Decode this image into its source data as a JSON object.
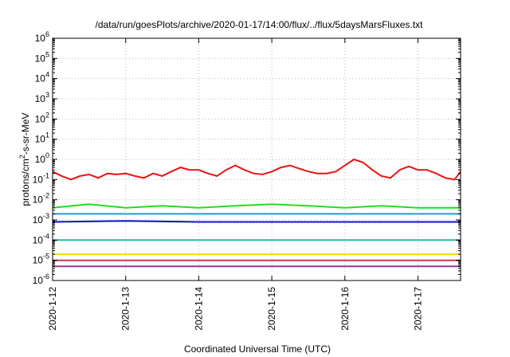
{
  "chart_data": {
    "type": "line",
    "title": "/data/run/goesPlots/archive/2020-01-17/14:00/flux/../flux/5daysMarsFluxes.txt",
    "xlabel": "Coordinated Universal Time (UTC)",
    "ylabel_base": "protons/cm",
    "ylabel_sup": "2",
    "ylabel_rest": "-s-sr-MeV",
    "x_scale": "time",
    "x_range": [
      "2020-01-12T00:00",
      "2020-01-17T14:00"
    ],
    "x_ticks": [
      "2020-1-12",
      "2020-1-13",
      "2020-1-14",
      "2020-1-15",
      "2020-1-16",
      "2020-1-17"
    ],
    "y_scale": "log",
    "y_range": [
      1e-06,
      1000000.0
    ],
    "y_ticks": [
      {
        "base": "10",
        "exp": "-6"
      },
      {
        "base": "10",
        "exp": "-5"
      },
      {
        "base": "10",
        "exp": "-4"
      },
      {
        "base": "10",
        "exp": "-3"
      },
      {
        "base": "10",
        "exp": "-2"
      },
      {
        "base": "10",
        "exp": "-1"
      },
      {
        "base": "10",
        "exp": "0"
      },
      {
        "base": "10",
        "exp": "1"
      },
      {
        "base": "10",
        "exp": "2"
      },
      {
        "base": "10",
        "exp": "3"
      },
      {
        "base": "10",
        "exp": "4"
      },
      {
        "base": "10",
        "exp": "5"
      },
      {
        "base": "10",
        "exp": "6"
      }
    ],
    "grid": true,
    "legend": "none",
    "series": [
      {
        "color": "#ee1111",
        "x": [
          "2020-01-12T00:00",
          "2020-01-12T03:00",
          "2020-01-12T06:00",
          "2020-01-12T09:00",
          "2020-01-12T12:00",
          "2020-01-12T15:00",
          "2020-01-12T18:00",
          "2020-01-12T21:00",
          "2020-01-13T00:00",
          "2020-01-13T03:00",
          "2020-01-13T06:00",
          "2020-01-13T09:00",
          "2020-01-13T12:00",
          "2020-01-13T15:00",
          "2020-01-13T18:00",
          "2020-01-13T21:00",
          "2020-01-14T00:00",
          "2020-01-14T03:00",
          "2020-01-14T06:00",
          "2020-01-14T09:00",
          "2020-01-14T12:00",
          "2020-01-14T15:00",
          "2020-01-14T18:00",
          "2020-01-14T21:00",
          "2020-01-15T00:00",
          "2020-01-15T03:00",
          "2020-01-15T06:00",
          "2020-01-15T09:00",
          "2020-01-15T12:00",
          "2020-01-15T15:00",
          "2020-01-15T18:00",
          "2020-01-15T21:00",
          "2020-01-16T00:00",
          "2020-01-16T03:00",
          "2020-01-16T06:00",
          "2020-01-16T09:00",
          "2020-01-16T12:00",
          "2020-01-16T15:00",
          "2020-01-16T18:00",
          "2020-01-16T21:00",
          "2020-01-17T00:00",
          "2020-01-17T03:00",
          "2020-01-17T06:00",
          "2020-01-17T09:00",
          "2020-01-17T12:00",
          "2020-01-17T14:00"
        ],
        "y": [
          0.25,
          0.15,
          0.1,
          0.15,
          0.18,
          0.12,
          0.2,
          0.18,
          0.2,
          0.15,
          0.12,
          0.2,
          0.15,
          0.25,
          0.4,
          0.3,
          0.3,
          0.2,
          0.15,
          0.3,
          0.5,
          0.3,
          0.2,
          0.18,
          0.25,
          0.4,
          0.5,
          0.35,
          0.25,
          0.2,
          0.2,
          0.25,
          0.5,
          1.0,
          0.7,
          0.3,
          0.15,
          0.12,
          0.3,
          0.45,
          0.3,
          0.3,
          0.2,
          0.12,
          0.1,
          0.25
        ]
      },
      {
        "color": "#22dd22",
        "x": [
          "2020-01-12T00:00",
          "2020-01-12T12:00",
          "2020-01-13T00:00",
          "2020-01-13T12:00",
          "2020-01-14T00:00",
          "2020-01-14T12:00",
          "2020-01-15T00:00",
          "2020-01-15T12:00",
          "2020-01-16T00:00",
          "2020-01-16T12:00",
          "2020-01-17T00:00",
          "2020-01-17T14:00"
        ],
        "y": [
          0.004,
          0.006,
          0.004,
          0.005,
          0.004,
          0.005,
          0.006,
          0.005,
          0.004,
          0.005,
          0.004,
          0.004
        ]
      },
      {
        "color": "#2299dd",
        "x": [
          "2020-01-12T00:00",
          "2020-01-13T00:00",
          "2020-01-14T00:00",
          "2020-01-15T00:00",
          "2020-01-16T00:00",
          "2020-01-17T00:00",
          "2020-01-17T14:00"
        ],
        "y": [
          0.002,
          0.002,
          0.002,
          0.002,
          0.002,
          0.002,
          0.002
        ]
      },
      {
        "color": "#1111cc",
        "x": [
          "2020-01-12T00:00",
          "2020-01-13T00:00",
          "2020-01-14T00:00",
          "2020-01-15T00:00",
          "2020-01-16T00:00",
          "2020-01-17T00:00",
          "2020-01-17T14:00"
        ],
        "y": [
          0.0008,
          0.0009,
          0.0008,
          0.0008,
          0.0008,
          0.0008,
          0.0008
        ]
      },
      {
        "color": "#22bbaa",
        "x": [
          "2020-01-12T00:00",
          "2020-01-13T00:00",
          "2020-01-14T00:00",
          "2020-01-15T00:00",
          "2020-01-16T00:00",
          "2020-01-17T00:00",
          "2020-01-17T14:00"
        ],
        "y": [
          0.0001,
          0.0001,
          0.0001,
          0.0001,
          0.0001,
          0.0001,
          0.0001
        ]
      },
      {
        "color": "#ffdd00",
        "x": [
          "2020-01-12T00:00",
          "2020-01-13T00:00",
          "2020-01-14T00:00",
          "2020-01-15T00:00",
          "2020-01-16T00:00",
          "2020-01-17T00:00",
          "2020-01-17T14:00"
        ],
        "y": [
          2e-05,
          2e-05,
          2e-05,
          2e-05,
          2e-05,
          2e-05,
          2e-05
        ]
      },
      {
        "color": "#cc3355",
        "x": [
          "2020-01-12T00:00",
          "2020-01-13T00:00",
          "2020-01-14T00:00",
          "2020-01-15T00:00",
          "2020-01-16T00:00",
          "2020-01-17T00:00",
          "2020-01-17T14:00"
        ],
        "y": [
          1e-05,
          1e-05,
          1e-05,
          1e-05,
          1e-05,
          1e-05,
          1e-05
        ]
      },
      {
        "color": "#993399",
        "x": [
          "2020-01-12T00:00",
          "2020-01-13T00:00",
          "2020-01-14T00:00",
          "2020-01-15T00:00",
          "2020-01-16T00:00",
          "2020-01-17T00:00",
          "2020-01-17T14:00"
        ],
        "y": [
          5e-06,
          5e-06,
          5e-06,
          5e-06,
          5e-06,
          5e-06,
          5e-06
        ]
      }
    ]
  }
}
